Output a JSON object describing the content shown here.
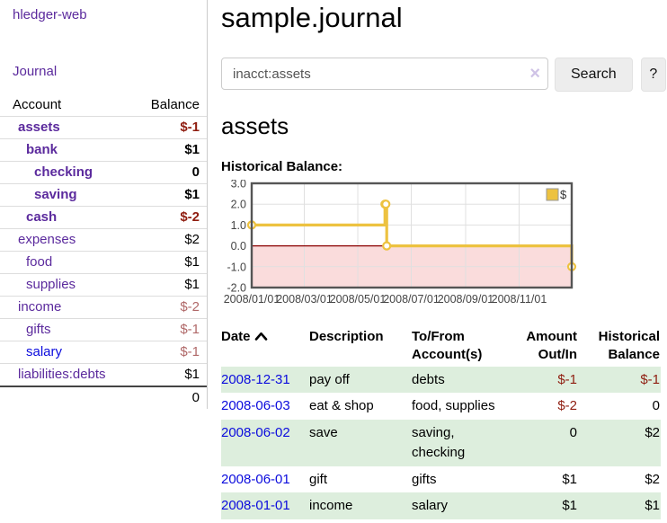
{
  "sidebar": {
    "app_title": "hledger-web",
    "nav": {
      "journal_label": "Journal"
    },
    "accounts": {
      "headers": {
        "account": "Account",
        "balance": "Balance"
      },
      "rows": [
        {
          "name": "assets",
          "indent": 1,
          "bold": true,
          "balance": "$-1"
        },
        {
          "name": "bank",
          "indent": 2,
          "bold": true,
          "balance": "$1"
        },
        {
          "name": "checking",
          "indent": 3,
          "bold": true,
          "balance": "0"
        },
        {
          "name": "saving",
          "indent": 3,
          "bold": true,
          "balance": "$1"
        },
        {
          "name": "cash",
          "indent": 2,
          "bold": true,
          "balance": "$-2"
        },
        {
          "name": "expenses",
          "indent": 1,
          "bold": false,
          "balance": "$2"
        },
        {
          "name": "food",
          "indent": 2,
          "bold": false,
          "balance": "$1"
        },
        {
          "name": "supplies",
          "indent": 2,
          "bold": false,
          "balance": "$1"
        },
        {
          "name": "income",
          "indent": 1,
          "bold": false,
          "balance": "$-2"
        },
        {
          "name": "gifts",
          "indent": 2,
          "bold": false,
          "balance": "$-1"
        },
        {
          "name": "salary",
          "indent": 2,
          "bold": false,
          "balance": "$-1"
        },
        {
          "name": "liabilities:debts",
          "indent": 1,
          "bold": false,
          "balance": "$1"
        }
      ],
      "total": "0"
    }
  },
  "header": {
    "title": "sample.journal"
  },
  "search": {
    "value": "inacct:assets",
    "clear_icon": "×",
    "button_label": "Search",
    "help_label": "?"
  },
  "account_page": {
    "title": "assets",
    "chart_label": "Historical Balance:"
  },
  "chart_data": {
    "type": "line",
    "step": true,
    "legend": "$",
    "legend_position": "top-right",
    "series": [
      {
        "name": "$",
        "color": "#edc240",
        "points": [
          {
            "date": "2008-01-01",
            "value": 1
          },
          {
            "date": "2008-06-01",
            "value": 2
          },
          {
            "date": "2008-06-02",
            "value": 2
          },
          {
            "date": "2008-06-03",
            "value": 0
          },
          {
            "date": "2008-12-31",
            "value": -1
          }
        ]
      }
    ],
    "xlim": [
      "2008-01-01",
      "2008-12-31"
    ],
    "ylim": [
      -2,
      3
    ],
    "yticks": [
      "3.0",
      "2.0",
      "1.0",
      "0.0",
      "-1.0",
      "-2.0"
    ],
    "ytick_values": [
      3,
      2,
      1,
      0,
      -1,
      -2
    ],
    "xticks": [
      "2008/01/01",
      "2008/03/01",
      "2008/05/01",
      "2008/07/01",
      "2008/09/01",
      "2008/11/01"
    ],
    "xtick_dates": [
      "2008-01-01",
      "2008-03-01",
      "2008-05-01",
      "2008-07-01",
      "2008-09-01",
      "2008-11-01"
    ],
    "grid": true,
    "negative_region_fill": "#fadcdc",
    "zero_line_color": "#8b0000",
    "border_color": "#555555",
    "grid_color": "#e0e0e0",
    "tick_text_color": "#444444"
  },
  "register": {
    "headers": {
      "date": "Date",
      "description": "Description",
      "accounts": "To/From Account(s)",
      "amount": "Amount Out/In",
      "balance": "Historical Balance"
    },
    "rows": [
      {
        "date": "2008-12-31",
        "description": "pay off",
        "accounts": "debts",
        "amount": "$-1",
        "balance": "$-1"
      },
      {
        "date": "2008-06-03",
        "description": "eat & shop",
        "accounts": "food, supplies",
        "amount": "$-2",
        "balance": "0"
      },
      {
        "date": "2008-06-02",
        "description": "save",
        "accounts": "saving, checking",
        "amount": "0",
        "balance": "$2"
      },
      {
        "date": "2008-06-01",
        "description": "gift",
        "accounts": "gifts",
        "amount": "$1",
        "balance": "$2"
      },
      {
        "date": "2008-01-01",
        "description": "income",
        "accounts": "salary",
        "amount": "$1",
        "balance": "$1"
      }
    ]
  },
  "colors": {
    "link_purple": "#5b2a9d",
    "link_blue": "#0b0bdd",
    "negative_strong": "#8f1d10",
    "negative_muted": "#b06868",
    "row_stripe_green": "#ddeedd",
    "series_gold": "#edc240"
  }
}
